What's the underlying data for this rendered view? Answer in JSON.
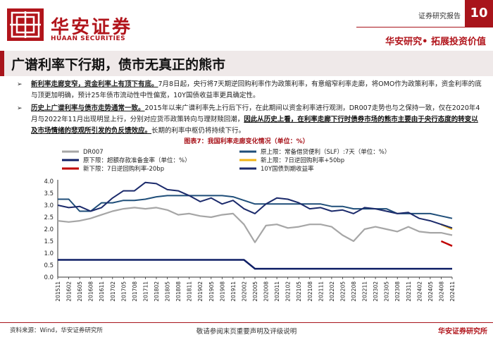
{
  "header": {
    "brand_cn": "华安证券",
    "brand_en": "HUAAN SECURITIES",
    "report_type": "证券研究报告",
    "page_number": "10",
    "slogan": "华安研究• 拓展投资价值"
  },
  "section_title": "广谱利率下行期，债市无真正的熊市",
  "bullets": [
    {
      "mark": "➢",
      "head": "新利率走廊变窄，资金利率上有顶下有底。",
      "text": "7月8日起，央行将7天期逆回购利率作为政策利率，有意缩窄利率走廊，将OMO作为政策利率，资金利率的底与顶更加明确，预计25年债市流动性中性偏宽，10Y国债收益率更具确定性。",
      "highlight": "",
      "tail": ""
    },
    {
      "mark": "➢",
      "head": "历史上广谱利率与债市走势通常一致。",
      "text": "2015年以来广谱利率先上行后下行，在此期间以资金利率进行观测，DR007走势也与之保持一致，仅在2020年4月与2022年11月出现明显上行，分别对应货币政策转向与理财赎回潮，",
      "highlight": "因此从历史上看，在利率走廊下行时债券市场的熊市主要由于央行态度的转变以及市场情绪的悲观所引发的负反馈效应。",
      "tail": "长期的利率中枢仍将持续下行。"
    }
  ],
  "figure_title": "图表7：我国利率走廊变化情况（单位：%）",
  "footer": {
    "source": "资料来源：Wind，华安证券研究所",
    "disclaimer": "敬请参阅末页重要声明及评级说明",
    "brand": "华安证券研究所"
  },
  "colors": {
    "accent": "#a8141b",
    "dr007": "#a6a6a6",
    "slf": "#1f4e79",
    "old_floor": "#0f1f66",
    "new_ceiling": "#f0b418",
    "new_floor": "#c00000",
    "cgb10y": "#1b2a6b"
  },
  "chart_data": {
    "type": "line",
    "title": "图表7：我国利率走廊变化情况（单位：%）",
    "xlabel": "",
    "ylabel": "",
    "ylim": [
      0.0,
      4.0
    ],
    "yticks": [
      "4.0",
      "3.5",
      "3.0",
      "2.5",
      "2.0",
      "1.5",
      "1.0",
      "0.5",
      "0.0"
    ],
    "x": [
      "201511",
      "201602",
      "201605",
      "201608",
      "201611",
      "201702",
      "201705",
      "201708",
      "201711",
      "201802",
      "201805",
      "201808",
      "201811",
      "201902",
      "201905",
      "201908",
      "201911",
      "202002",
      "202005",
      "202008",
      "202011",
      "202102",
      "202105",
      "202108",
      "202111",
      "202202",
      "202205",
      "202208",
      "202211",
      "202302",
      "202305",
      "202308",
      "202311",
      "202402",
      "202405",
      "202408",
      "202411"
    ],
    "legend": [
      "DR007",
      "原上限：常备借贷便利（SLF）:7天（单位：%）",
      "原下限：超额存款准备金率（单位：%）",
      "新上限：7日逆回购利率+50bp",
      "新下限：7日逆回购利率-20bp",
      "10Y国债到期收益率"
    ],
    "series": [
      {
        "name": "DR007",
        "values": [
          2.35,
          2.3,
          2.35,
          2.45,
          2.6,
          2.75,
          2.85,
          2.9,
          2.85,
          2.9,
          2.8,
          2.6,
          2.65,
          2.55,
          2.5,
          2.6,
          2.65,
          2.2,
          1.45,
          2.15,
          2.2,
          2.05,
          2.1,
          2.2,
          2.2,
          2.1,
          1.75,
          1.5,
          2.0,
          2.1,
          2.0,
          1.9,
          2.1,
          1.9,
          1.85,
          1.85,
          1.75
        ]
      },
      {
        "name": "原上限：常备借贷便利（SLF）:7天（单位：%）",
        "values": [
          3.25,
          3.25,
          2.75,
          2.75,
          3.1,
          3.1,
          3.2,
          3.2,
          3.25,
          3.35,
          3.4,
          3.4,
          3.4,
          3.4,
          3.4,
          3.4,
          3.35,
          3.2,
          3.05,
          3.05,
          3.05,
          3.05,
          3.05,
          3.05,
          3.05,
          2.95,
          2.95,
          2.85,
          2.85,
          2.85,
          2.85,
          2.65,
          2.65,
          2.65,
          2.65,
          2.55,
          2.45
        ]
      },
      {
        "name": "原下限：超额存款准备金率（单位：%）",
        "values": [
          0.72,
          0.72,
          0.72,
          0.72,
          0.72,
          0.72,
          0.72,
          0.72,
          0.72,
          0.72,
          0.72,
          0.72,
          0.72,
          0.72,
          0.72,
          0.72,
          0.72,
          0.72,
          0.35,
          0.35,
          0.35,
          0.35,
          0.35,
          0.35,
          0.35,
          0.35,
          0.35,
          0.35,
          0.35,
          0.35,
          0.35,
          0.35,
          0.35,
          0.35,
          0.35,
          0.35,
          0.35
        ]
      },
      {
        "name": "新上限：7日逆回购利率+50bp",
        "values": [
          null,
          null,
          null,
          null,
          null,
          null,
          null,
          null,
          null,
          null,
          null,
          null,
          null,
          null,
          null,
          null,
          null,
          null,
          null,
          null,
          null,
          null,
          null,
          null,
          null,
          null,
          null,
          null,
          null,
          null,
          null,
          null,
          null,
          null,
          null,
          2.2,
          2.0
        ]
      },
      {
        "name": "新下限：7日逆回购利率-20bp",
        "values": [
          null,
          null,
          null,
          null,
          null,
          null,
          null,
          null,
          null,
          null,
          null,
          null,
          null,
          null,
          null,
          null,
          null,
          null,
          null,
          null,
          null,
          null,
          null,
          null,
          null,
          null,
          null,
          null,
          null,
          null,
          null,
          null,
          null,
          null,
          null,
          1.5,
          1.3
        ]
      },
      {
        "name": "10Y国债到期收益率",
        "values": [
          3.0,
          2.9,
          2.95,
          2.75,
          2.9,
          3.3,
          3.6,
          3.6,
          3.95,
          3.9,
          3.65,
          3.6,
          3.4,
          3.15,
          3.3,
          3.05,
          3.2,
          2.85,
          2.65,
          3.05,
          3.3,
          3.25,
          3.1,
          2.85,
          2.9,
          2.75,
          2.8,
          2.65,
          2.9,
          2.85,
          2.75,
          2.65,
          2.7,
          2.45,
          2.35,
          2.2,
          2.05
        ]
      }
    ]
  }
}
